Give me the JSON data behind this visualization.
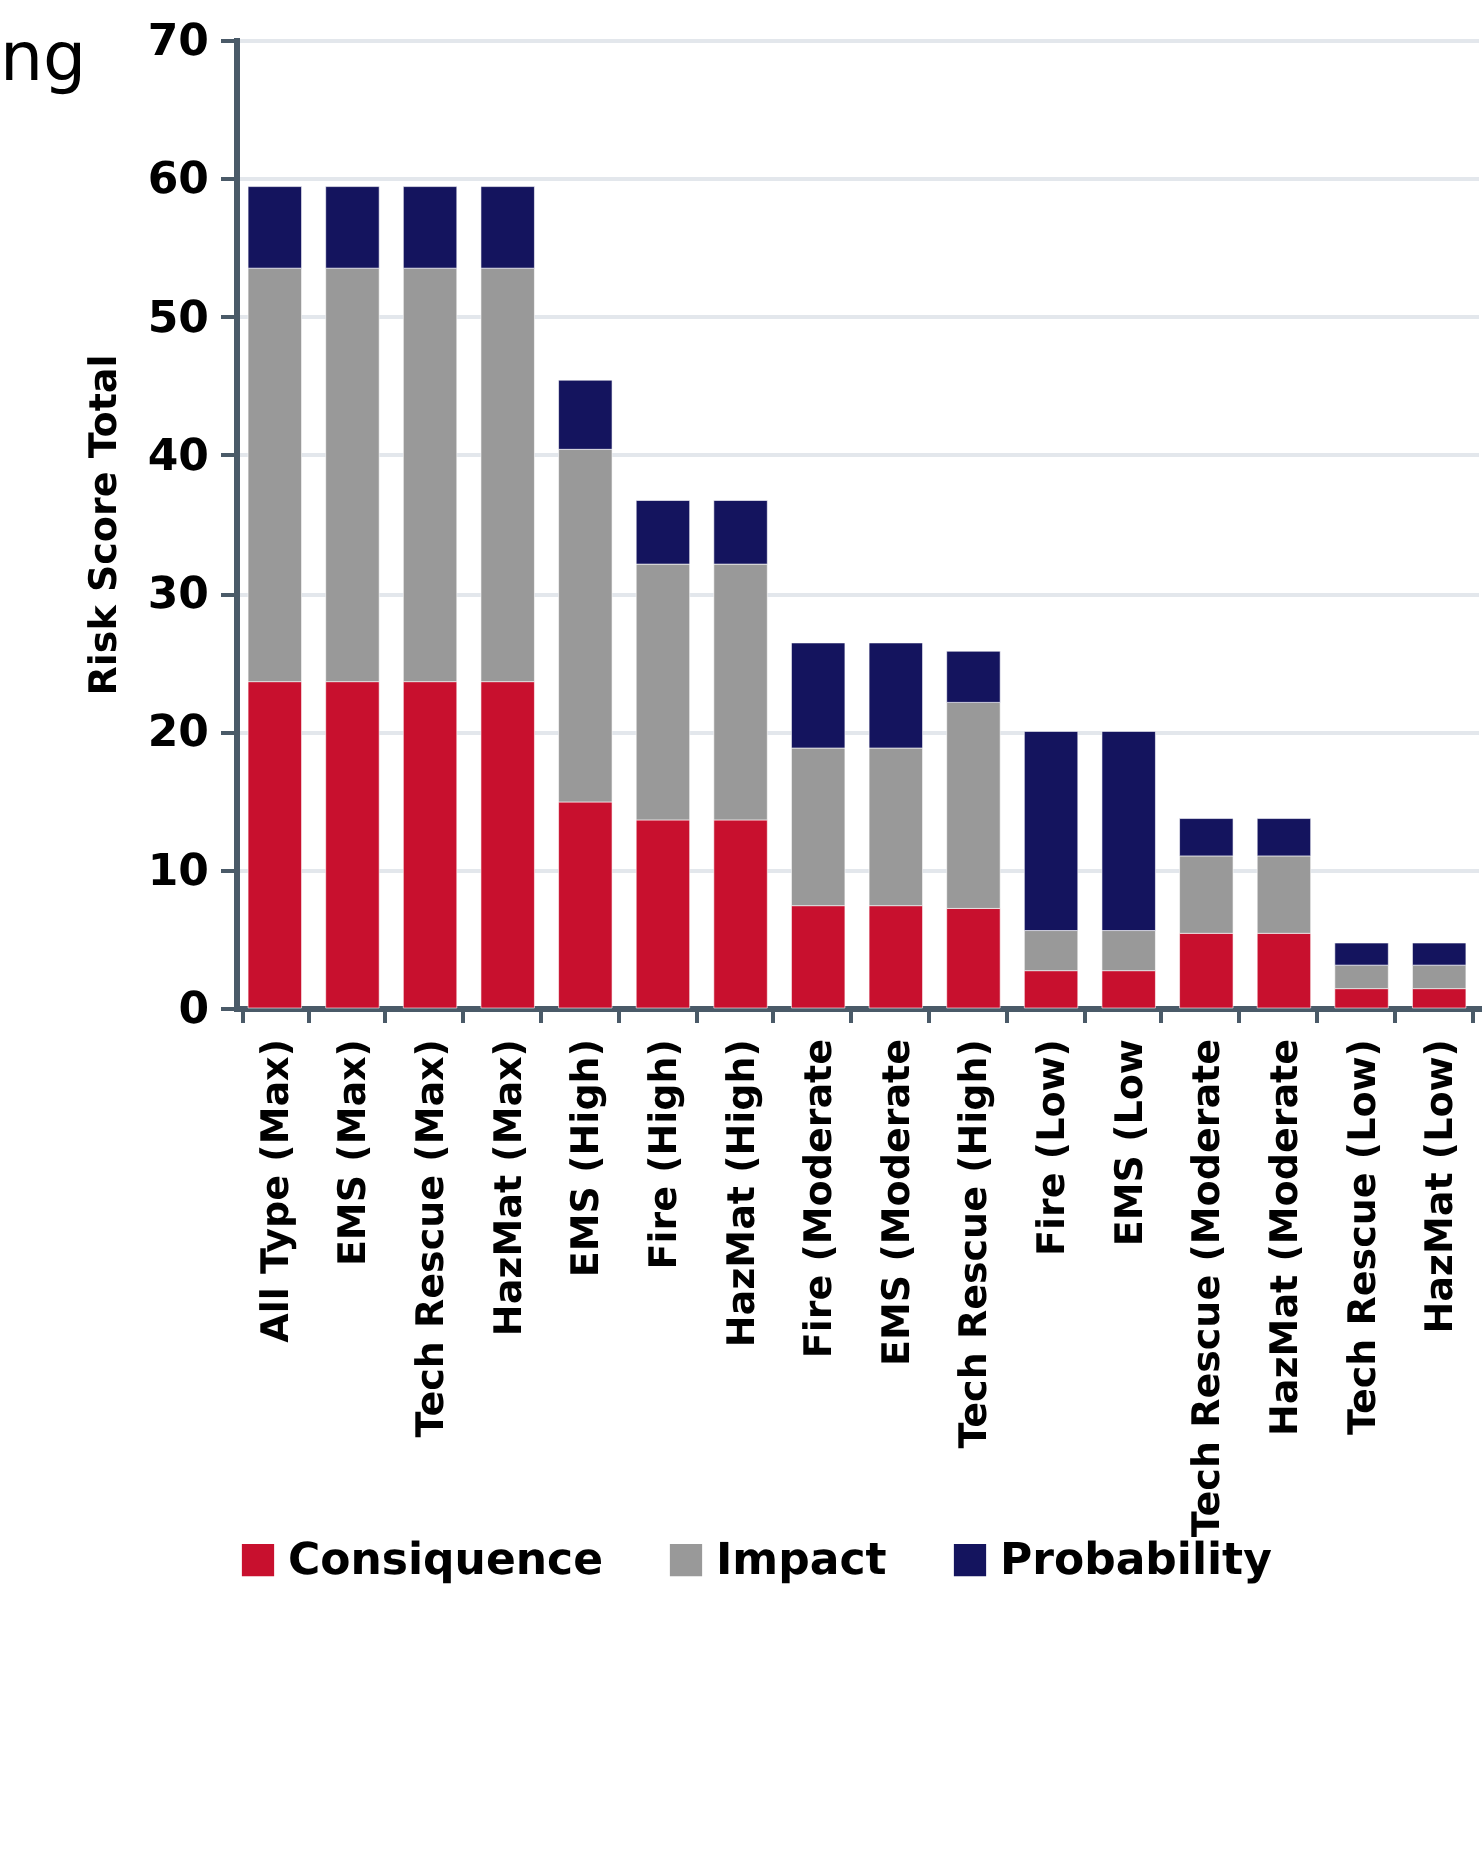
{
  "chart_data": {
    "type": "bar",
    "title": "ng",
    "ylabel": "Risk Score Total",
    "stacked": true,
    "grid": "y",
    "legend": "bottom",
    "categories": [
      "All Type (Max)",
      "EMS (Max)",
      "Tech Rescue (Max)",
      "HazMat (Max)",
      "EMS (High)",
      "Fire (High)",
      "HazMat (High)",
      "Fire (Moderate",
      "EMS (Moderate",
      "Tech Rescue (High)",
      "Fire (Low)",
      "EMS (Low",
      "Tech Rescue (Moderate",
      "HazMat (Moderate",
      "Tech Rescue (Low)",
      "HazMat (Low)"
    ],
    "series": [
      {
        "name": "Consiquence",
        "color": "#c8102e",
        "values": [
          23.6,
          23.6,
          23.6,
          23.6,
          14.9,
          13.6,
          13.6,
          7.4,
          7.4,
          7.2,
          2.7,
          2.7,
          5.4,
          5.4,
          1.4,
          1.4
        ]
      },
      {
        "name": "Impact",
        "color": "#999999",
        "values": [
          29.9,
          29.9,
          29.9,
          29.9,
          25.5,
          18.5,
          18.5,
          11.4,
          11.4,
          14.9,
          2.9,
          2.9,
          5.6,
          5.6,
          1.7,
          1.7
        ]
      },
      {
        "name": "Probability",
        "color": "#14145e",
        "values": [
          5.9,
          5.9,
          5.9,
          5.9,
          5.0,
          4.6,
          4.6,
          7.6,
          7.6,
          3.7,
          14.4,
          14.4,
          2.7,
          2.7,
          1.6,
          1.6
        ]
      }
    ],
    "ylim": [
      0,
      70
    ],
    "yticks": [
      0,
      10,
      20,
      30,
      40,
      50,
      60,
      70
    ]
  }
}
